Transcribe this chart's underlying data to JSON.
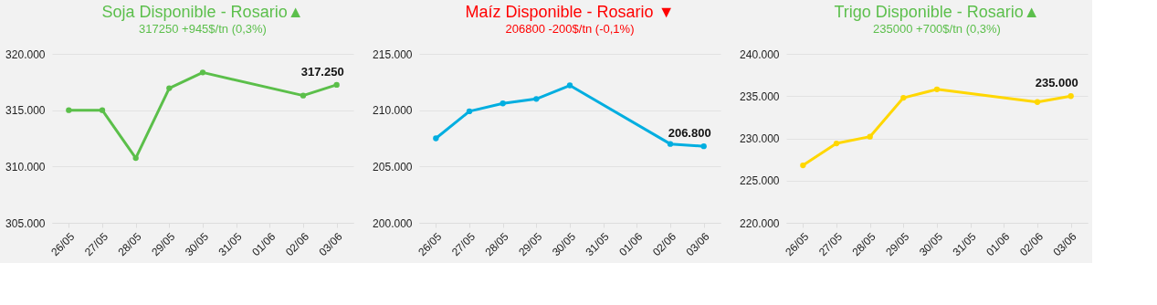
{
  "chart_data": [
    {
      "type": "line",
      "title": "Soja Disponible - Rosario▲",
      "subtitle": "317250 +945$/tn (0,3%)",
      "categories": [
        "26/05",
        "27/05",
        "28/05",
        "29/05",
        "30/05",
        "31/05",
        "01/06",
        "02/06",
        "03/06"
      ],
      "series": [
        {
          "color": "#5bbf4a",
          "values": [
            315000,
            315000,
            310750,
            316950,
            318350,
            null,
            null,
            316300,
            317250
          ],
          "value_labels": [
            null,
            null,
            null,
            null,
            null,
            null,
            null,
            null,
            "317.250"
          ]
        }
      ],
      "ylim": [
        305000,
        320000
      ],
      "yticks": [
        {
          "value": 305000,
          "label": "305.000"
        },
        {
          "value": 310000,
          "label": "310.000"
        },
        {
          "value": 315000,
          "label": "315.000"
        },
        {
          "value": 320000,
          "label": "320.000"
        }
      ],
      "grid": "y",
      "marker": "circle"
    },
    {
      "type": "line",
      "title": "Maíz Disponible - Rosario ▼",
      "subtitle": "206800 -200$/tn (-0,1%)",
      "categories": [
        "26/05",
        "27/05",
        "28/05",
        "29/05",
        "30/05",
        "31/05",
        "01/06",
        "02/06",
        "03/06"
      ],
      "series": [
        {
          "color": "#00aee0",
          "values": [
            207500,
            209900,
            210600,
            211000,
            212200,
            null,
            null,
            207000,
            206800
          ],
          "value_labels": [
            null,
            null,
            null,
            null,
            null,
            null,
            null,
            null,
            "206.800"
          ]
        }
      ],
      "ylim": [
        200000,
        215000
      ],
      "yticks": [
        {
          "value": 200000,
          "label": "200.000"
        },
        {
          "value": 205000,
          "label": "205.000"
        },
        {
          "value": 210000,
          "label": "210.000"
        },
        {
          "value": 215000,
          "label": "215.000"
        }
      ],
      "grid": "y",
      "marker": "circle"
    },
    {
      "type": "line",
      "title": "Trigo Disponible - Rosario▲",
      "subtitle": "235000 +700$/tn (0,3%)",
      "categories": [
        "26/05",
        "27/05",
        "28/05",
        "29/05",
        "30/05",
        "31/05",
        "01/06",
        "02/06",
        "03/06"
      ],
      "series": [
        {
          "color": "#ffd700",
          "values": [
            226800,
            229400,
            230200,
            234800,
            235800,
            null,
            null,
            234300,
            235000
          ],
          "value_labels": [
            null,
            null,
            null,
            null,
            null,
            null,
            null,
            null,
            "235.000"
          ]
        }
      ],
      "ylim": [
        220000,
        240000
      ],
      "yticks": [
        {
          "value": 220000,
          "label": "220.000"
        },
        {
          "value": 225000,
          "label": "225.000"
        },
        {
          "value": 230000,
          "label": "230.000"
        },
        {
          "value": 235000,
          "label": "235.000"
        },
        {
          "value": 240000,
          "label": "240.000"
        }
      ],
      "grid": "y",
      "marker": "circle"
    }
  ]
}
